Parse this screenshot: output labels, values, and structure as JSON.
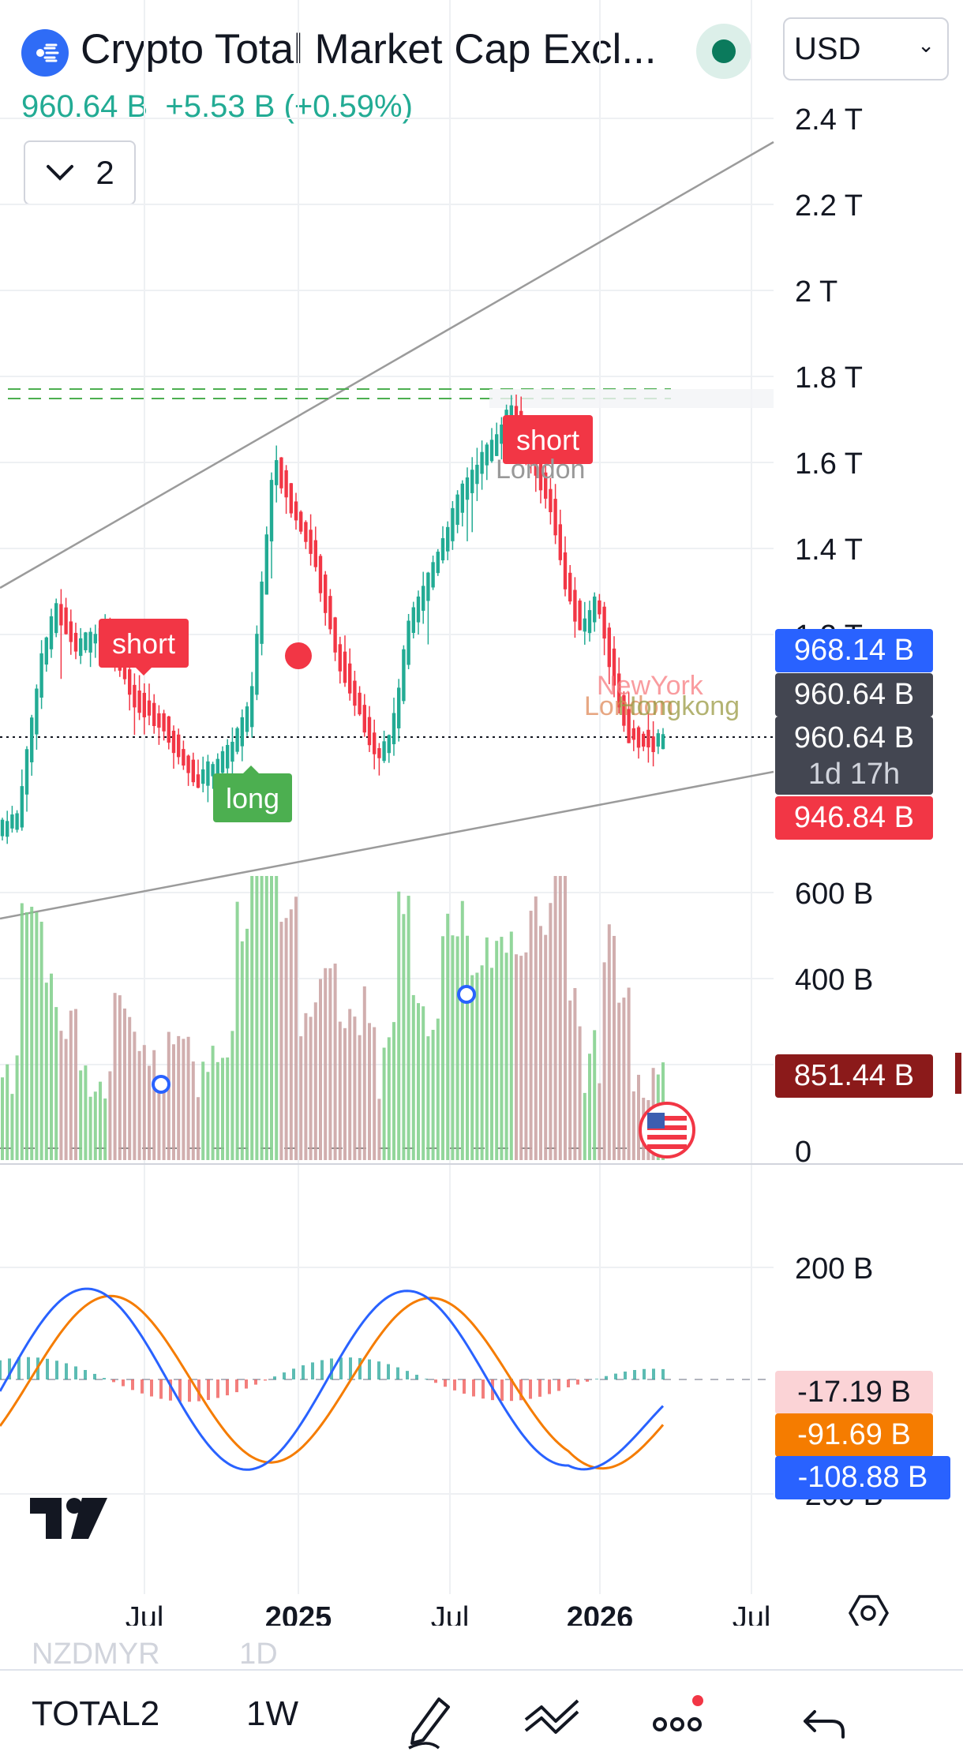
{
  "header": {
    "title": "Crypto Total Market Cap Excl...",
    "currency": "USD",
    "price": "960.64 B",
    "change": "+5.53 B (+0.59%)",
    "indicator_count": "2"
  },
  "price_axis": [
    "2.4 T",
    "2.2 T",
    "2 T",
    "1.8 T",
    "1.6 T",
    "1.4 T",
    "1.2 T"
  ],
  "volume_axis": [
    "600 B",
    "400 B",
    "0"
  ],
  "macd_axis": [
    "200 B",
    "-200 B"
  ],
  "time_axis": [
    "Jul",
    "2025",
    "Jul",
    "2026",
    "Jul"
  ],
  "price_tags": {
    "upper": "968.14 B",
    "last": "960.64 B",
    "last_close": "960.64 B",
    "countdown": "1d 17h",
    "lower": "946.84 B",
    "volume": "851.44 B",
    "macd_hist": "-17.19 B",
    "macd_signal": "-91.69 B",
    "macd_line": "-108.88 B"
  },
  "signals": {
    "short_1": "short",
    "short_2": "short",
    "long_1": "long",
    "session_labels": [
      "NewYork",
      "London",
      "Hongkong"
    ]
  },
  "colors": {
    "up": "#22ab94",
    "down": "#f23645",
    "accent_blue": "#2962ff",
    "macd_orange": "#f57c00",
    "brand_icon": "#2f6cf6"
  },
  "footer": {
    "ghost_symbol": "NZDMYR",
    "ghost_interval": "1D"
  },
  "bottom_bar": {
    "symbol": "TOTAL2",
    "interval": "1W"
  }
}
